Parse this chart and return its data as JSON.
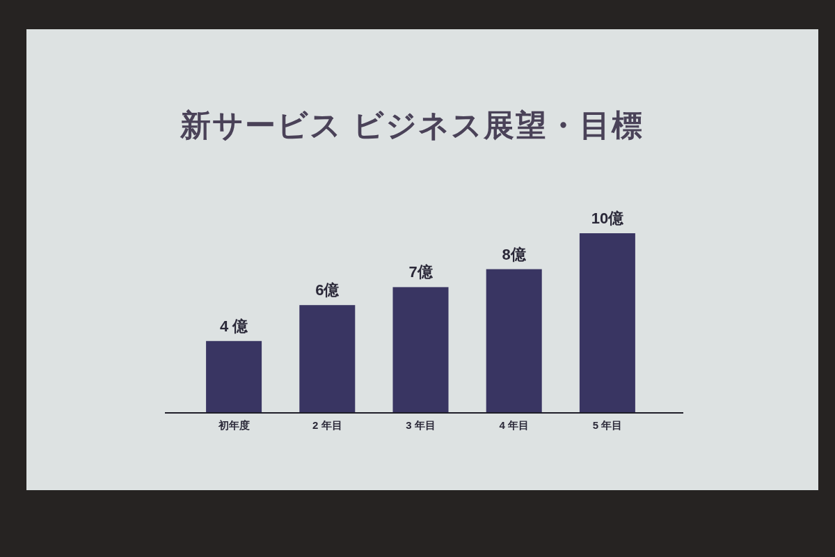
{
  "chart_data": {
    "type": "bar",
    "title": "新サービス ビジネス展望・目標",
    "categories": [
      "初年度",
      "2 年目",
      "3 年目",
      "4 年目",
      "5 年目"
    ],
    "values": [
      4,
      6,
      7,
      8,
      10
    ],
    "value_labels": [
      "4 億",
      "6億",
      "7億",
      "8億",
      "10億"
    ],
    "color": "#393562"
  }
}
